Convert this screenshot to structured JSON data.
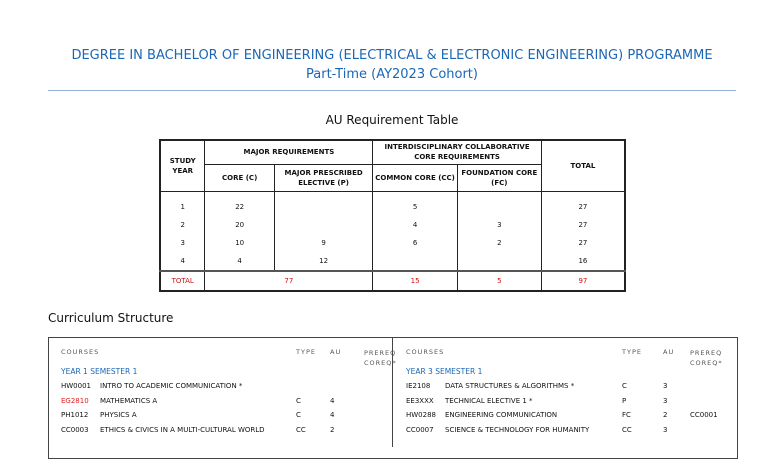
{
  "title": {
    "line1": "DEGREE IN BACHELOR OF ENGINEERING (ELECTRICAL & ELECTRONIC ENGINEERING) PROGRAMME",
    "line2": "Part-Time (AY2023 Cohort)"
  },
  "au_table": {
    "caption": "AU Requirement Table",
    "headers": {
      "study_year": "STUDY YEAR",
      "major": "MAJOR REQUIREMENTS",
      "core": "CORE (C)",
      "mpe": "MAJOR PRESCRIBED ELECTIVE (P)",
      "icc": "INTERDISCIPLINARY COLLABORATIVE CORE REQUIREMENTS",
      "common": "COMMON CORE (CC)",
      "foundation": "FOUNDATION CORE (FC)",
      "total": "TOTAL"
    },
    "rows": [
      {
        "year": "1",
        "core": "22",
        "mpe": "",
        "cc": "5",
        "fc": "",
        "total": "27"
      },
      {
        "year": "2",
        "core": "20",
        "mpe": "",
        "cc": "4",
        "fc": "3",
        "total": "27"
      },
      {
        "year": "3",
        "core": "10",
        "mpe": "9",
        "cc": "6",
        "fc": "2",
        "total": "27"
      },
      {
        "year": "4",
        "core": "4",
        "mpe": "12",
        "cc": "",
        "fc": "",
        "total": "16"
      }
    ],
    "total_row": {
      "label": "TOTAL",
      "major": "77",
      "cc": "15",
      "fc": "5",
      "total": "97"
    }
  },
  "curriculum": {
    "heading": "Curriculum Structure",
    "cols": {
      "courses": "COURSES",
      "type": "TYPE",
      "au": "AU",
      "prereq": "PREREQ COREQ*"
    },
    "left": {
      "semester": "YEAR 1 SEMESTER 1",
      "courses": [
        {
          "code": "HW0001",
          "title": "INTRO TO ACADEMIC COMMUNICATION *",
          "type": "",
          "au": "",
          "prereq": "",
          "code_color": "#111"
        },
        {
          "code": "EG2810",
          "title": "MATHEMATICS A",
          "type": "C",
          "au": "4",
          "prereq": "",
          "code_color": "#e02020"
        },
        {
          "code": "PH1012",
          "title": "PHYSICS A",
          "type": "C",
          "au": "4",
          "prereq": "",
          "code_color": "#111"
        },
        {
          "code": "CC0003",
          "title": "ETHICS & CIVICS IN A MULTI-CULTURAL WORLD",
          "type": "CC",
          "au": "2",
          "prereq": "",
          "code_color": "#111"
        }
      ]
    },
    "right": {
      "semester": "YEAR 3 SEMESTER 1",
      "courses": [
        {
          "code": "IE2108",
          "title": "DATA STRUCTURES & ALGORITHMS *",
          "type": "C",
          "au": "3",
          "prereq": ""
        },
        {
          "code": "EE3XXX",
          "title": "TECHNICAL ELECTIVE 1 *",
          "type": "P",
          "au": "3",
          "prereq": ""
        },
        {
          "code": "HW0288",
          "title": "ENGINEERING COMMUNICATION",
          "type": "FC",
          "au": "2",
          "prereq": "CC0001"
        },
        {
          "code": "CC0007",
          "title": "SCIENCE & TECHNOLOGY FOR HUMANITY",
          "type": "CC",
          "au": "3",
          "prereq": ""
        }
      ]
    }
  }
}
